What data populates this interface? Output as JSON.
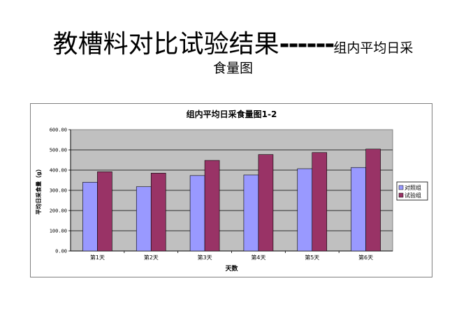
{
  "slide": {
    "title_main": "教槽料对比试验结果",
    "title_dashes": "------",
    "title_tail": "组内平均日采",
    "title_line2": "食量图"
  },
  "colors": {
    "plot_bg": "#c0c0c0",
    "series1": "#9999ff",
    "series2": "#993366"
  },
  "chart_data": {
    "type": "bar",
    "title": "组内平均日采食量图1-2",
    "xlabel": "天数",
    "ylabel": "平均日采食量（g）",
    "categories": [
      "第1天",
      "第2天",
      "第3天",
      "第4天",
      "第5天",
      "第6天"
    ],
    "series": [
      {
        "name": "对照组",
        "values": [
          340,
          318,
          373,
          376,
          407,
          413
        ]
      },
      {
        "name": "试验组",
        "values": [
          392,
          385,
          448,
          477,
          487,
          504
        ]
      }
    ],
    "ylim": [
      0,
      600
    ],
    "yticks": [
      "0.00",
      "100.00",
      "200.00",
      "300.00",
      "400.00",
      "500.00",
      "600.00"
    ],
    "grid": true,
    "legend": "right"
  }
}
